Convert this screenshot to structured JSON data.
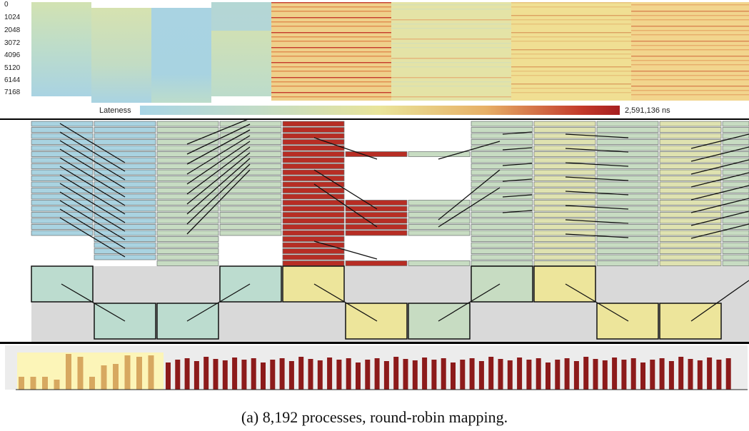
{
  "y_axis_labels": [
    "0",
    "1024",
    "2048",
    "3072",
    "4096",
    "5120",
    "6144",
    "7168"
  ],
  "legend": {
    "label": "Lateness",
    "max_label": "2,591,136 ns"
  },
  "caption": "(a) 8,192 processes, round-robin mapping.",
  "colors": {
    "blue": "#a9d3e1",
    "green": "#c7dcc2",
    "yellow": "#ede59b",
    "red": "#b72d24",
    "gray": "#d9d9d9",
    "teal": "#bcdccf",
    "dark_red": "#8c1a1a",
    "highlight": "#fcf5b8"
  }
}
